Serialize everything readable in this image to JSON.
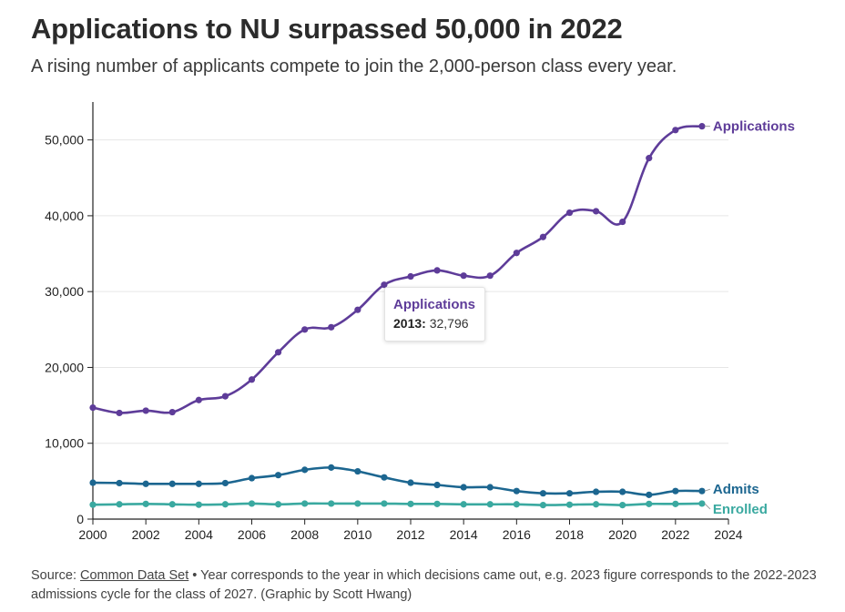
{
  "chart_data": {
    "type": "line",
    "title": "Applications to NU surpassed 50,000 in 2022",
    "subtitle": "A rising number of applicants compete to join the 2,000-person class every year.",
    "xlabel": "",
    "ylabel": "",
    "x": [
      2000,
      2001,
      2002,
      2003,
      2004,
      2005,
      2006,
      2007,
      2008,
      2009,
      2010,
      2011,
      2012,
      2013,
      2014,
      2015,
      2016,
      2017,
      2018,
      2019,
      2020,
      2021,
      2022,
      2023
    ],
    "xlim": [
      2000,
      2024
    ],
    "ylim": [
      0,
      55000
    ],
    "x_ticks": [
      "2000",
      "2002",
      "2004",
      "2006",
      "2008",
      "2010",
      "2012",
      "2014",
      "2016",
      "2018",
      "2020",
      "2022",
      "2024"
    ],
    "y_ticks": [
      "0",
      "10,000",
      "20,000",
      "30,000",
      "40,000",
      "50,000"
    ],
    "grid": "horizontal",
    "series": [
      {
        "name": "Applications",
        "color": "#5e3c99",
        "values": [
          14700,
          14000,
          14300,
          14100,
          15700,
          16200,
          18400,
          22000,
          25000,
          25300,
          27600,
          30900,
          32000,
          32796,
          32100,
          32100,
          35100,
          37200,
          40400,
          40600,
          39200,
          47600,
          51300,
          51800
        ]
      },
      {
        "name": "Admits",
        "color": "#1c6690",
        "values": [
          4800,
          4750,
          4650,
          4650,
          4650,
          4750,
          5400,
          5800,
          6500,
          6800,
          6300,
          5500,
          4800,
          4500,
          4200,
          4200,
          3700,
          3400,
          3400,
          3600,
          3600,
          3200,
          3700,
          3700
        ]
      },
      {
        "name": "Enrolled",
        "color": "#3aa9a0",
        "values": [
          1900,
          1950,
          2000,
          1950,
          1900,
          1950,
          2050,
          1950,
          2050,
          2050,
          2050,
          2050,
          2000,
          2000,
          1950,
          1950,
          1950,
          1850,
          1900,
          1950,
          1850,
          2000,
          2000,
          2050
        ]
      }
    ],
    "tooltip": {
      "series": "Applications",
      "year": "2013:",
      "value": "32,796"
    }
  },
  "footer": {
    "source_label": "Source: ",
    "source_link": "Common Data Set",
    "note": " • Year corresponds to the year in which decisions came out, e.g. 2023 figure corresponds to the 2022-2023 admissions cycle for the class of 2027. (Graphic by Scott Hwang)"
  }
}
